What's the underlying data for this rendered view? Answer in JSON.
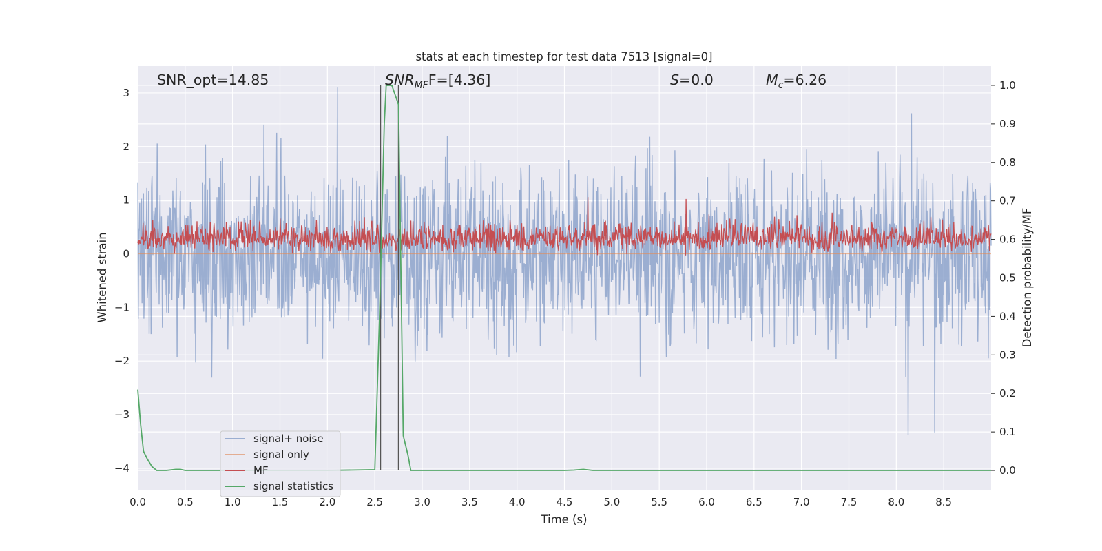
{
  "chart_data": {
    "type": "line",
    "title": "stats at each timestep for test data 7513 [signal=0]",
    "xlabel": "Time (s)",
    "ylabel_left": "Whitened strain",
    "ylabel_right": "Detection probability/MF",
    "xlim": [
      0.0,
      9.0
    ],
    "ylim_left": [
      -4.4,
      3.5
    ],
    "ylim_right": [
      -0.05,
      1.05
    ],
    "grid": true,
    "legend_placement": "lower-left",
    "x_ticks": [
      "0.0",
      "0.5",
      "1.0",
      "1.5",
      "2.0",
      "2.5",
      "3.0",
      "3.5",
      "4.0",
      "4.5",
      "5.0",
      "5.5",
      "6.0",
      "6.5",
      "7.0",
      "7.5",
      "8.0",
      "8.5"
    ],
    "y_ticks_left": [
      "3",
      "2",
      "1",
      "0",
      "−1",
      "−2",
      "−3",
      "−4"
    ],
    "y_ticks_right": [
      "1.0",
      "0.9",
      "0.8",
      "0.7",
      "0.6",
      "0.5",
      "0.4",
      "0.3",
      "0.2",
      "0.1",
      "0.0"
    ],
    "annotations": {
      "snr_opt": "SNR_opt=14.85",
      "snr_mf_main": "SNR",
      "snr_mf_sub": "MF",
      "snr_mf_tail": "F=[4.36]",
      "s_main": "S",
      "s_tail": "=0.0",
      "mc_main": "M",
      "mc_sub": "c",
      "mc_tail": "=6.26"
    },
    "vertical_markers_s": [
      2.56,
      2.75
    ],
    "series": [
      {
        "name": "signal+ noise",
        "axis": "left",
        "color": "#4c72b0",
        "style": "dense noise",
        "envelope_typical": [
          -1.5,
          1.6
        ],
        "envelope_extreme": [
          -4.0,
          3.1
        ]
      },
      {
        "name": "signal only",
        "axis": "left",
        "color": "#dd8452",
        "values": "~0 throughout"
      },
      {
        "name": "MF",
        "axis": "right",
        "color": "#c44e52",
        "style": "dense noise",
        "baseline": 0.6,
        "typical_max": 0.68,
        "peak": 0.71
      },
      {
        "name": "signal statistics",
        "axis": "right",
        "color": "#55a868",
        "points": [
          [
            0.0,
            0.21
          ],
          [
            0.03,
            0.12
          ],
          [
            0.06,
            0.05
          ],
          [
            0.1,
            0.03
          ],
          [
            0.15,
            0.01
          ],
          [
            0.2,
            0.0
          ],
          [
            0.3,
            0.0
          ],
          [
            0.4,
            0.003
          ],
          [
            0.45,
            0.003
          ],
          [
            0.5,
            0.0
          ],
          [
            1.0,
            0.0
          ],
          [
            2.0,
            0.0
          ],
          [
            2.5,
            0.002
          ],
          [
            2.55,
            0.4
          ],
          [
            2.6,
            0.9
          ],
          [
            2.62,
            1.0
          ],
          [
            2.68,
            1.0
          ],
          [
            2.75,
            0.95
          ],
          [
            2.8,
            0.09
          ],
          [
            2.85,
            0.04
          ],
          [
            2.88,
            0.0
          ],
          [
            3.5,
            0.0
          ],
          [
            4.5,
            0.0
          ],
          [
            4.6,
            0.001
          ],
          [
            4.7,
            0.003
          ],
          [
            4.8,
            0.0
          ],
          [
            6.0,
            0.0
          ],
          [
            7.0,
            0.0
          ],
          [
            8.0,
            0.0
          ],
          [
            8.5,
            0.0
          ],
          [
            8.9,
            0.0
          ],
          [
            9.0,
            0.0
          ]
        ]
      }
    ]
  }
}
